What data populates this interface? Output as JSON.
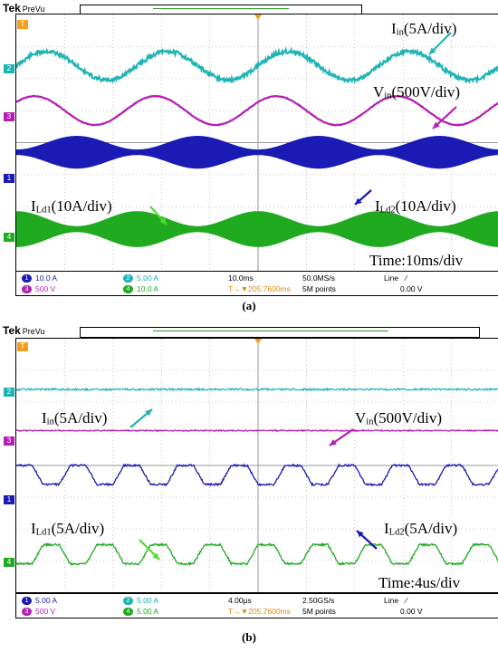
{
  "panels": [
    {
      "id": "a",
      "caption": "(a)",
      "brand": "Tek",
      "mode": "PreVu",
      "trigger_marker": "T",
      "annotations": {
        "iin": {
          "main": "I",
          "sub": "in",
          "rest": "(5A/div)"
        },
        "vin": {
          "main": "V",
          "sub": "in",
          "rest": "(500V/div)"
        },
        "ild1": {
          "main": "I",
          "sub": "Ld1",
          "rest": "(10A/div)"
        },
        "ild2": {
          "main": "I",
          "sub": "Ld2",
          "rest": "(10A/div)"
        },
        "time": "Time:10ms/div"
      },
      "status": {
        "ch1": {
          "num": "1",
          "scale": "10.0 A"
        },
        "ch2": {
          "num": "2",
          "scale": "5.00 A"
        },
        "ch3": {
          "num": "3",
          "scale": "500 V"
        },
        "ch4": {
          "num": "4",
          "scale": "10.0 A"
        },
        "timebase": "10.0ms",
        "sample_rate": "50.0MS/s",
        "trigger_pos": "T→▼205.7600ms",
        "record": "5M points",
        "trig_type": "Line",
        "trig_slope": "∕",
        "trig_level": "0.00 V"
      }
    },
    {
      "id": "b",
      "caption": "(b)",
      "brand": "Tek",
      "mode": "PreVu",
      "trigger_marker": "T",
      "annotations": {
        "iin": {
          "main": "I",
          "sub": "in",
          "rest": "(5A/div)"
        },
        "vin": {
          "main": "V",
          "sub": "in",
          "rest": "(500V/div)"
        },
        "ild1": {
          "main": "I",
          "sub": "Ld1",
          "rest": "(5A/div)"
        },
        "ild2": {
          "main": "I",
          "sub": "Ld2",
          "rest": "(5A/div)"
        },
        "time": "Time:4us/div"
      },
      "status": {
        "ch1": {
          "num": "1",
          "scale": "5.00 A"
        },
        "ch2": {
          "num": "2",
          "scale": "5.00 A"
        },
        "ch3": {
          "num": "3",
          "scale": "500 V"
        },
        "ch4": {
          "num": "4",
          "scale": "5.00 A"
        },
        "timebase": "4.00µs",
        "sample_rate": "2.50GS/s",
        "trigger_pos": "T→▼205.7600ms",
        "record": "5M points",
        "trig_type": "Line",
        "trig_slope": "∕",
        "trig_level": "0.00 V"
      }
    }
  ],
  "colors": {
    "ch1": "#1a1ab4",
    "ch2": "#1fb4b4",
    "ch3": "#b41eb4",
    "ch4": "#1faa1f",
    "grid": "#9a9a9a",
    "trigger": "#f0a020"
  },
  "chart_data": [
    {
      "type": "line",
      "divisions": {
        "x": 10,
        "y": 8
      },
      "series": [
        {
          "channel": 2,
          "shape": "sine",
          "cycles": 4,
          "offset_div": 1.6,
          "amp_div": 0.45,
          "ripple_div": 0.06
        },
        {
          "channel": 3,
          "shape": "sine",
          "cycles": 4,
          "offset_div": 3.0,
          "amp_div": 0.45,
          "phase": 0.1
        },
        {
          "channel": 1,
          "shape": "rectified-envelope",
          "cycles": 8,
          "offset_div": 4.3,
          "amp_div": 0.5
        },
        {
          "channel": 4,
          "shape": "rectified-envelope-inverted",
          "cycles": 8,
          "offset_div": 6.7,
          "amp_div": 0.55
        }
      ]
    },
    {
      "type": "line",
      "divisions": {
        "x": 10,
        "y": 8
      },
      "series": [
        {
          "channel": 2,
          "shape": "flat",
          "offset_div": 1.6,
          "noise_div": 0.03
        },
        {
          "channel": 3,
          "shape": "flat",
          "offset_div": 2.9,
          "noise_div": 0.02
        },
        {
          "channel": 1,
          "shape": "trapezoid",
          "cycles": 9,
          "offset_div": 4.3,
          "amp_div": 0.3
        },
        {
          "channel": 4,
          "shape": "trapezoid-inverted",
          "cycles": 9,
          "offset_div": 6.8,
          "amp_div": 0.3
        }
      ]
    }
  ]
}
